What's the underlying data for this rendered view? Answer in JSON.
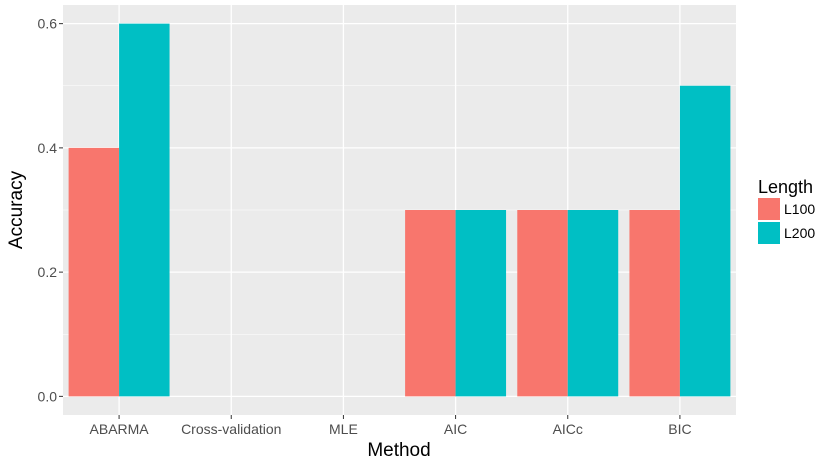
{
  "chart_data": {
    "type": "bar",
    "title": "",
    "xlabel": "Method",
    "ylabel": "Accuracy",
    "categories": [
      "ABARMA",
      "Cross-validation",
      "MLE",
      "AIC",
      "AICc",
      "BIC"
    ],
    "series": [
      {
        "name": "L100",
        "color": "#F8766D",
        "values": [
          0.4,
          0,
          0,
          0.3,
          0.3,
          0.3
        ]
      },
      {
        "name": "L200",
        "color": "#00BFC4",
        "values": [
          0.6,
          0,
          0,
          0.3,
          0.3,
          0.5
        ]
      }
    ],
    "ylim": [
      -0.03,
      0.63
    ],
    "yticks": [
      0.0,
      0.2,
      0.4,
      0.6
    ],
    "ytick_labels": [
      "0.0",
      "0.2",
      "0.4",
      "0.6"
    ],
    "grid": true,
    "panel_background": "#EBEBEB",
    "legend": {
      "title": "Length",
      "position": "right"
    }
  }
}
